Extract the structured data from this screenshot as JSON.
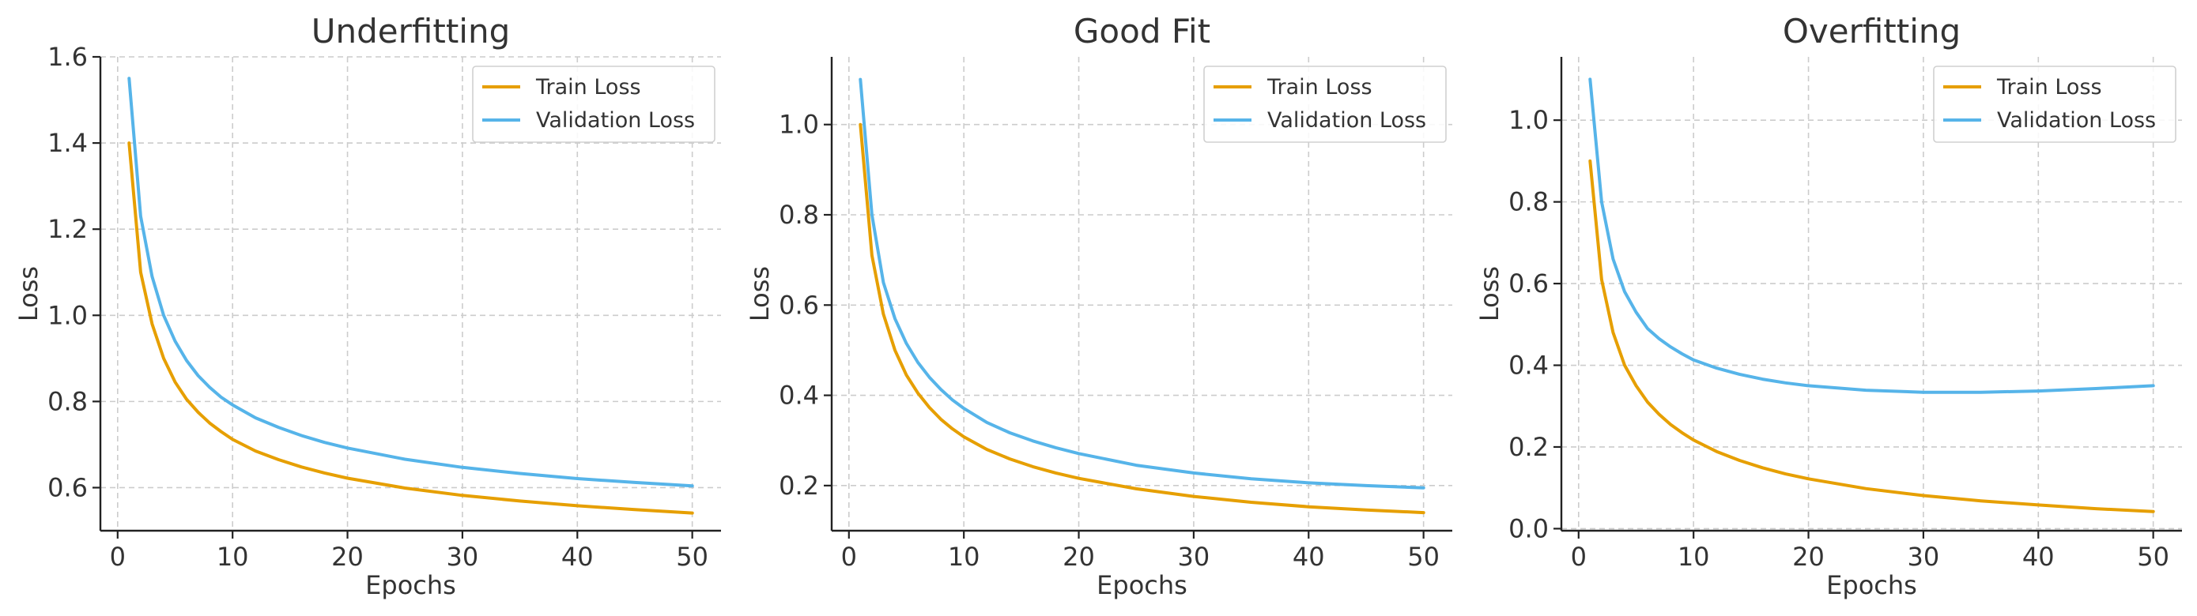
{
  "colors": {
    "train": "#E69F00",
    "validation": "#56B4E9"
  },
  "chart_data": [
    {
      "type": "line",
      "title": "Underfitting",
      "xlabel": "Epochs",
      "ylabel": "Loss",
      "xlim": [
        -1.5,
        52.5
      ],
      "ylim": [
        0.5,
        1.6
      ],
      "xticks": [
        0,
        10,
        20,
        30,
        40,
        50
      ],
      "yticks": [
        0.6,
        0.8,
        1.0,
        1.2,
        1.4,
        1.6
      ],
      "ytick_labels": [
        "0.6",
        "0.8",
        "1.0",
        "1.2",
        "1.4",
        "1.6"
      ],
      "grid": true,
      "legend": "top-right",
      "series": [
        {
          "name": "Train Loss",
          "x": [
            1,
            2,
            3,
            4,
            5,
            6,
            7,
            8,
            9,
            10,
            12,
            14,
            16,
            18,
            20,
            25,
            30,
            35,
            40,
            45,
            50
          ],
          "y": [
            1.4,
            1.1,
            0.98,
            0.9,
            0.845,
            0.805,
            0.775,
            0.75,
            0.73,
            0.712,
            0.685,
            0.665,
            0.648,
            0.634,
            0.622,
            0.599,
            0.582,
            0.569,
            0.558,
            0.549,
            0.541
          ]
        },
        {
          "name": "Validation Loss",
          "x": [
            1,
            2,
            3,
            4,
            5,
            6,
            7,
            8,
            9,
            10,
            12,
            14,
            16,
            18,
            20,
            25,
            30,
            35,
            40,
            45,
            50
          ],
          "y": [
            1.55,
            1.23,
            1.09,
            1.0,
            0.94,
            0.895,
            0.86,
            0.833,
            0.81,
            0.792,
            0.762,
            0.74,
            0.721,
            0.705,
            0.692,
            0.666,
            0.647,
            0.633,
            0.621,
            0.612,
            0.604
          ]
        }
      ]
    },
    {
      "type": "line",
      "title": "Good Fit",
      "xlabel": "Epochs",
      "ylabel": "Loss",
      "xlim": [
        -1.5,
        52.5
      ],
      "ylim": [
        0.1,
        1.15
      ],
      "xticks": [
        0,
        10,
        20,
        30,
        40,
        50
      ],
      "yticks": [
        0.2,
        0.4,
        0.6,
        0.8,
        1.0
      ],
      "ytick_labels": [
        "0.2",
        "0.4",
        "0.6",
        "0.8",
        "1.0"
      ],
      "grid": true,
      "legend": "top-right",
      "series": [
        {
          "name": "Train Loss",
          "x": [
            1,
            2,
            3,
            4,
            5,
            6,
            7,
            8,
            9,
            10,
            12,
            14,
            16,
            18,
            20,
            25,
            30,
            35,
            40,
            45,
            50
          ],
          "y": [
            1.0,
            0.71,
            0.58,
            0.5,
            0.445,
            0.405,
            0.373,
            0.347,
            0.326,
            0.308,
            0.28,
            0.259,
            0.242,
            0.228,
            0.216,
            0.193,
            0.176,
            0.163,
            0.153,
            0.146,
            0.14
          ]
        },
        {
          "name": "Validation Loss",
          "x": [
            1,
            2,
            3,
            4,
            5,
            6,
            7,
            8,
            9,
            10,
            12,
            14,
            16,
            18,
            20,
            25,
            30,
            35,
            40,
            45,
            50
          ],
          "y": [
            1.1,
            0.8,
            0.65,
            0.57,
            0.515,
            0.473,
            0.44,
            0.413,
            0.39,
            0.371,
            0.34,
            0.317,
            0.299,
            0.284,
            0.271,
            0.245,
            0.228,
            0.215,
            0.206,
            0.2,
            0.195
          ]
        }
      ]
    },
    {
      "type": "line",
      "title": "Overfitting",
      "xlabel": "Epochs",
      "ylabel": "Loss",
      "xlim": [
        -1.5,
        52.5
      ],
      "ylim": [
        -0.005,
        1.155
      ],
      "xticks": [
        0,
        10,
        20,
        30,
        40,
        50
      ],
      "yticks": [
        0.0,
        0.2,
        0.4,
        0.6,
        0.8,
        1.0
      ],
      "ytick_labels": [
        "0.0",
        "0.2",
        "0.4",
        "0.6",
        "0.8",
        "1.0"
      ],
      "grid": true,
      "legend": "top-right",
      "series": [
        {
          "name": "Train Loss",
          "x": [
            1,
            2,
            3,
            4,
            5,
            6,
            7,
            8,
            9,
            10,
            12,
            14,
            16,
            18,
            20,
            25,
            30,
            35,
            40,
            45,
            50
          ],
          "y": [
            0.9,
            0.61,
            0.48,
            0.4,
            0.35,
            0.31,
            0.28,
            0.255,
            0.235,
            0.217,
            0.189,
            0.167,
            0.149,
            0.134,
            0.122,
            0.098,
            0.081,
            0.068,
            0.058,
            0.049,
            0.042
          ]
        },
        {
          "name": "Validation Loss",
          "x": [
            1,
            2,
            3,
            4,
            5,
            6,
            7,
            8,
            9,
            10,
            12,
            14,
            16,
            18,
            20,
            25,
            30,
            35,
            40,
            45,
            50
          ],
          "y": [
            1.1,
            0.8,
            0.66,
            0.58,
            0.53,
            0.49,
            0.465,
            0.445,
            0.428,
            0.413,
            0.393,
            0.378,
            0.366,
            0.357,
            0.35,
            0.339,
            0.334,
            0.334,
            0.337,
            0.343,
            0.35
          ]
        }
      ]
    }
  ]
}
